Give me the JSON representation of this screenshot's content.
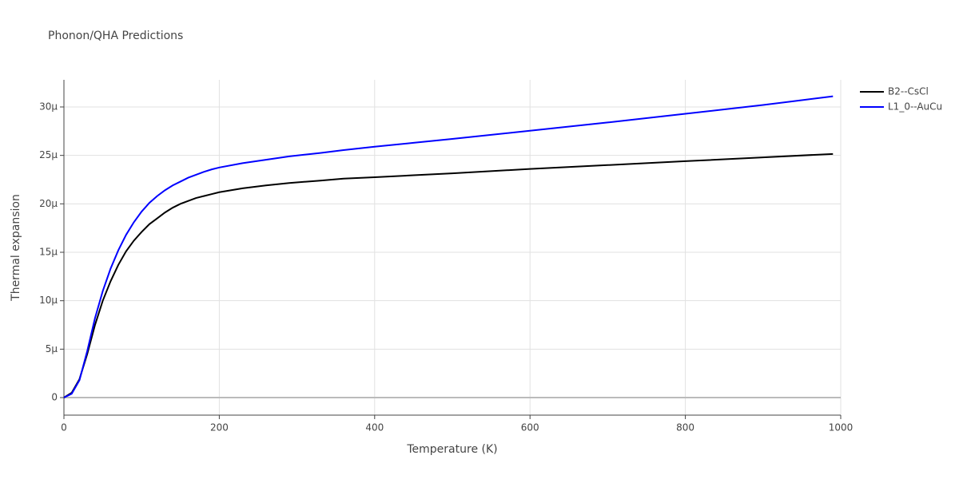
{
  "chart_data": {
    "type": "line",
    "title": "Phonon/QHA Predictions",
    "x_label": "Temperature (K)",
    "y_label": "Thermal expansion",
    "x": [
      0,
      10,
      20,
      30,
      40,
      50,
      60,
      70,
      80,
      90,
      100,
      110,
      120,
      130,
      140,
      150,
      160,
      170,
      180,
      190,
      200,
      230,
      260,
      290,
      330,
      360,
      400,
      450,
      500,
      600,
      700,
      800,
      900,
      990
    ],
    "series": [
      {
        "name": "B2--CsCl",
        "color": "#000000",
        "values": [
          0,
          5e-07,
          1.9e-06,
          4.5e-06,
          7.5e-06,
          1e-05,
          1.2e-05,
          1.37e-05,
          1.51e-05,
          1.62e-05,
          1.71e-05,
          1.79e-05,
          1.85e-05,
          1.91e-05,
          1.96e-05,
          2e-05,
          2.03e-05,
          2.06e-05,
          2.08e-05,
          2.1e-05,
          2.12e-05,
          2.16e-05,
          2.19e-05,
          2.215e-05,
          2.24e-05,
          2.26e-05,
          2.275e-05,
          2.295e-05,
          2.315e-05,
          2.36e-05,
          2.4e-05,
          2.44e-05,
          2.48e-05,
          2.515e-05
        ]
      },
      {
        "name": "L1_0--AuCu",
        "color": "#0000ff",
        "values": [
          0,
          4e-07,
          1.8e-06,
          4.8e-06,
          8.2e-06,
          1.1e-05,
          1.33e-05,
          1.52e-05,
          1.68e-05,
          1.81e-05,
          1.92e-05,
          2.01e-05,
          2.08e-05,
          2.14e-05,
          2.19e-05,
          2.23e-05,
          2.27e-05,
          2.3e-05,
          2.33e-05,
          2.355e-05,
          2.375e-05,
          2.42e-05,
          2.455e-05,
          2.49e-05,
          2.525e-05,
          2.555e-05,
          2.59e-05,
          2.63e-05,
          2.67e-05,
          2.755e-05,
          2.84e-05,
          2.93e-05,
          3.02e-05,
          3.11e-05
        ]
      }
    ],
    "xlim": [
      0,
      1000
    ],
    "xticks": [
      0,
      200,
      400,
      600,
      800,
      1000
    ],
    "ylim": [
      -1.81e-06,
      3.28e-05
    ],
    "yticks": [
      0,
      {
        "value": 5e-06,
        "label": "5μ"
      },
      {
        "value": 1e-05,
        "label": "10μ"
      },
      {
        "value": 1.5e-05,
        "label": "15μ"
      },
      {
        "value": 2e-05,
        "label": "20μ"
      },
      {
        "value": 2.5e-05,
        "label": "25μ"
      },
      {
        "value": 3e-05,
        "label": "30μ"
      }
    ],
    "grid": true,
    "legend": "top-right"
  }
}
